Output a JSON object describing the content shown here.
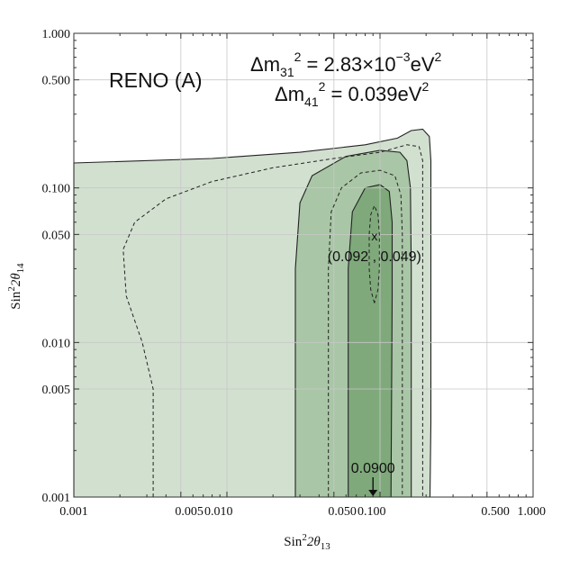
{
  "chart_data": {
    "type": "contour",
    "title": "RENO (A)",
    "params": [
      {
        "lhs": "Δm",
        "sub": "31",
        "sup": "2",
        "rhs": " = 2.83×10",
        "exp": "−3",
        "unit": "eV",
        "unit_sup": "2"
      },
      {
        "lhs": "Δm",
        "sub": "41",
        "sup": "2",
        "rhs": " = 0.039eV",
        "exp": "",
        "unit": "",
        "unit_sup": "2"
      }
    ],
    "xlabel": {
      "pre": "Sin",
      "sup": "2",
      "mid": "2θ",
      "sub": "13"
    },
    "ylabel": {
      "pre": "Sin",
      "sup": "2",
      "mid": "2θ",
      "sub": "14"
    },
    "xscale": "log",
    "yscale": "log",
    "xlim": [
      0.001,
      1.0
    ],
    "ylim": [
      0.001,
      1.0
    ],
    "xticks": [
      {
        "value": 0.001,
        "label": "0.001"
      },
      {
        "value": 0.005,
        "label": "0.005"
      },
      {
        "value": 0.01,
        "label": "0.010"
      },
      {
        "value": 0.05,
        "label": "0.050"
      },
      {
        "value": 0.1,
        "label": "0.100"
      },
      {
        "value": 0.5,
        "label": "0.500"
      },
      {
        "value": 1.0,
        "label": "1.000"
      }
    ],
    "yticks": [
      {
        "value": 0.001,
        "label": "0.001"
      },
      {
        "value": 0.005,
        "label": "0.005"
      },
      {
        "value": 0.01,
        "label": "0.010"
      },
      {
        "value": 0.05,
        "label": "0.050"
      },
      {
        "value": 0.1,
        "label": "0.100"
      },
      {
        "value": 0.5,
        "label": "0.500"
      },
      {
        "value": 1.0,
        "label": "1.000"
      }
    ],
    "grid": true,
    "best_fit": {
      "x": 0.092,
      "y": 0.049,
      "marker": "x",
      "label": "(0.092 , 0.049)"
    },
    "arrow_annotation": {
      "x": 0.09,
      "label": "0.0900"
    },
    "regions": [
      {
        "name": "outer",
        "fill": "#d2e0d0",
        "points": [
          [
            0.001,
            0.001
          ],
          [
            0.001,
            0.145
          ],
          [
            0.008,
            0.155
          ],
          [
            0.03,
            0.17
          ],
          [
            0.08,
            0.19
          ],
          [
            0.13,
            0.21
          ],
          [
            0.16,
            0.235
          ],
          [
            0.19,
            0.24
          ],
          [
            0.21,
            0.215
          ],
          [
            0.215,
            0.15
          ],
          [
            0.215,
            0.003
          ],
          [
            0.212,
            0.001
          ]
        ]
      },
      {
        "name": "middle",
        "fill": "#a9c6a6",
        "points": [
          [
            0.028,
            0.001
          ],
          [
            0.028,
            0.03
          ],
          [
            0.03,
            0.08
          ],
          [
            0.036,
            0.12
          ],
          [
            0.06,
            0.16
          ],
          [
            0.1,
            0.175
          ],
          [
            0.135,
            0.17
          ],
          [
            0.15,
            0.15
          ],
          [
            0.158,
            0.1
          ],
          [
            0.16,
            0.03
          ],
          [
            0.16,
            0.001
          ]
        ]
      },
      {
        "name": "inner",
        "fill": "#7fa97b",
        "points": [
          [
            0.062,
            0.001
          ],
          [
            0.062,
            0.03
          ],
          [
            0.066,
            0.07
          ],
          [
            0.08,
            0.1
          ],
          [
            0.1,
            0.105
          ],
          [
            0.115,
            0.095
          ],
          [
            0.12,
            0.06
          ],
          [
            0.12,
            0.02
          ],
          [
            0.118,
            0.001
          ]
        ]
      }
    ],
    "dashed_contours": [
      {
        "name": "outer-dashed",
        "points": [
          [
            0.0033,
            0.001
          ],
          [
            0.0033,
            0.005
          ],
          [
            0.0028,
            0.01
          ],
          [
            0.0022,
            0.02
          ],
          [
            0.0021,
            0.04
          ],
          [
            0.0025,
            0.06
          ],
          [
            0.004,
            0.085
          ],
          [
            0.008,
            0.11
          ],
          [
            0.02,
            0.135
          ],
          [
            0.05,
            0.155
          ],
          [
            0.1,
            0.17
          ],
          [
            0.15,
            0.19
          ],
          [
            0.18,
            0.185
          ],
          [
            0.19,
            0.15
          ],
          [
            0.19,
            0.05
          ],
          [
            0.19,
            0.001
          ]
        ]
      },
      {
        "name": "middle-dashed",
        "points": [
          [
            0.046,
            0.001
          ],
          [
            0.046,
            0.03
          ],
          [
            0.048,
            0.07
          ],
          [
            0.056,
            0.1
          ],
          [
            0.075,
            0.125
          ],
          [
            0.1,
            0.13
          ],
          [
            0.125,
            0.12
          ],
          [
            0.137,
            0.09
          ],
          [
            0.14,
            0.05
          ],
          [
            0.14,
            0.001
          ]
        ]
      },
      {
        "name": "inner-dashed",
        "points": [
          [
            0.092,
            0.018
          ],
          [
            0.087,
            0.022
          ],
          [
            0.085,
            0.03
          ],
          [
            0.085,
            0.05
          ],
          [
            0.087,
            0.067
          ],
          [
            0.092,
            0.077
          ],
          [
            0.097,
            0.067
          ],
          [
            0.099,
            0.05
          ],
          [
            0.099,
            0.03
          ],
          [
            0.097,
            0.022
          ],
          [
            0.092,
            0.018
          ]
        ]
      }
    ]
  }
}
